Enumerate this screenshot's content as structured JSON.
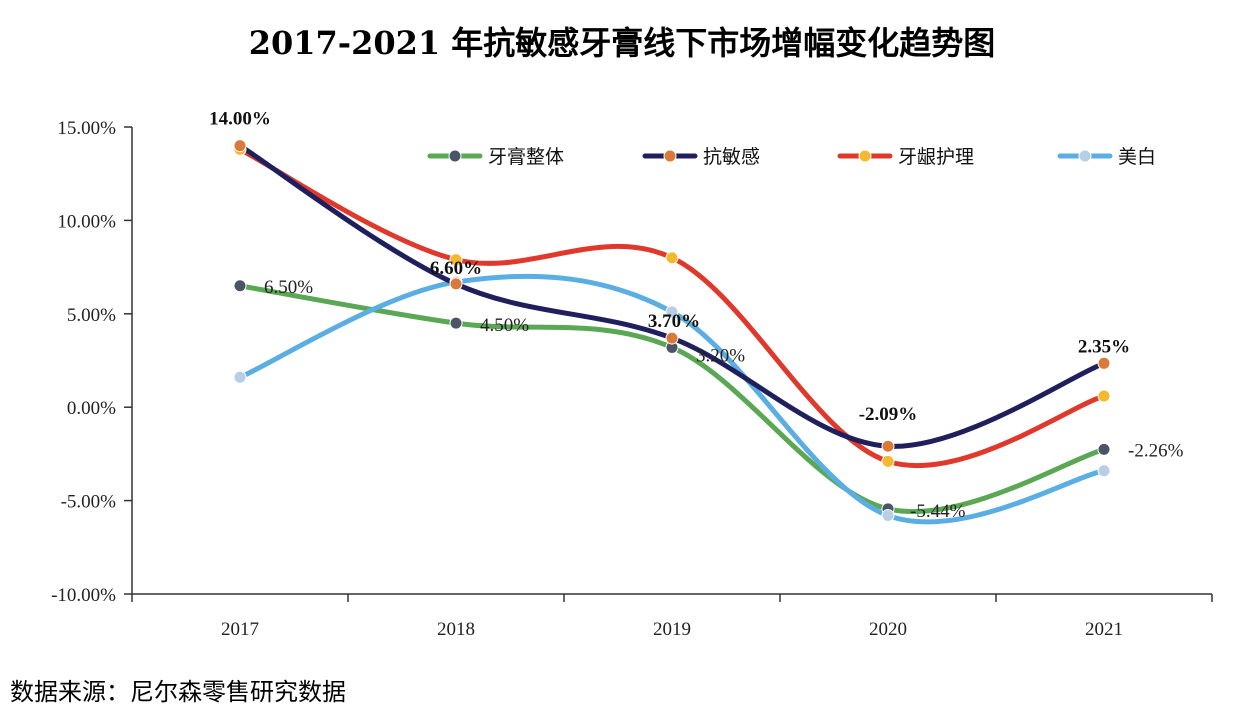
{
  "title": "2017-2021 年抗敏感牙膏线下市场增幅变化趋势图",
  "source": "数据来源：尼尔森零售研究数据",
  "chart_data": {
    "type": "line",
    "categories": [
      "2017",
      "2018",
      "2019",
      "2020",
      "2021"
    ],
    "ylim": [
      -0.1,
      0.15
    ],
    "yticks": [
      0.15,
      0.1,
      0.05,
      0.0,
      -0.05,
      -0.1
    ],
    "ytick_labels": [
      "15.00%",
      "10.00%",
      "5.00%",
      "0.00%",
      "-5.00%",
      "-10.00%"
    ],
    "legend_position": "top-right",
    "series": [
      {
        "name": "牙膏整体",
        "line_color": "#5aa853",
        "marker_color": "#4a5668",
        "values": [
          0.065,
          0.045,
          0.032,
          -0.0544,
          -0.0226
        ],
        "labels": [
          "6.50%",
          "4.50%",
          "3.20%",
          "-5.44%",
          "-2.26%"
        ],
        "label_bold": false
      },
      {
        "name": "抗敏感",
        "line_color": "#1f1f5e",
        "marker_color": "#d97a3a",
        "values": [
          0.14,
          0.066,
          0.037,
          -0.0209,
          0.0235
        ],
        "labels": [
          "14.00%",
          "6.60%",
          "3.70%",
          "-2.09%",
          "2.35%"
        ],
        "label_bold": true
      },
      {
        "name": "牙龈护理",
        "line_color": "#e0392b",
        "marker_color": "#f6b92e",
        "values": [
          0.138,
          0.079,
          0.08,
          -0.029,
          0.006
        ],
        "labels": [],
        "label_bold": false
      },
      {
        "name": "美白",
        "line_color": "#5aaee3",
        "marker_color": "#b8cde6",
        "values": [
          0.016,
          0.067,
          0.051,
          -0.058,
          -0.034
        ],
        "labels": [],
        "label_bold": false
      }
    ]
  }
}
